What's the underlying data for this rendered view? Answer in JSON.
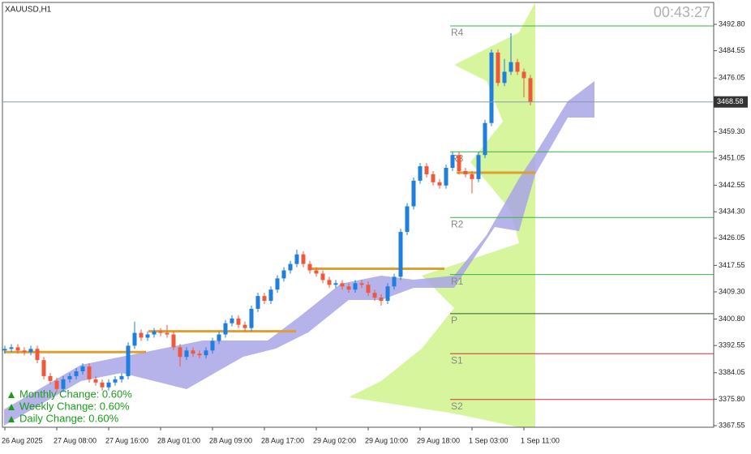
{
  "chart_data": {
    "type": "candlestick",
    "title": "XAUUSD,H1",
    "timer": "00:43:27",
    "categories": [
      "26 Aug 2025",
      null,
      null,
      null,
      null,
      null,
      null,
      null,
      "27 Aug 08:00",
      null,
      null,
      null,
      null,
      null,
      null,
      null,
      "27 Aug 16:00",
      null,
      null,
      null,
      null,
      null,
      null,
      null,
      "28 Aug 01:00",
      null,
      null,
      null,
      null,
      null,
      null,
      null,
      "28 Aug 09:00",
      null,
      null,
      null,
      null,
      null,
      null,
      null,
      "28 Aug 17:00",
      null,
      null,
      null,
      null,
      null,
      null,
      null,
      "29 Aug 02:00",
      null,
      null,
      null,
      null,
      null,
      null,
      null,
      "29 Aug 10:00",
      null,
      null,
      null,
      null,
      null,
      null,
      null,
      "29 Aug 18:00",
      null,
      null,
      null,
      null,
      null,
      null,
      null,
      "1 Sep 03:00",
      null,
      null,
      null,
      null,
      null,
      null,
      null,
      "1 Sep 11:00",
      null
    ],
    "open": [
      3391,
      3391.5,
      3392,
      3391,
      3390.5,
      3391.5,
      3388,
      3383,
      3381.5,
      3379,
      3382,
      3383,
      3384.5,
      3386,
      3382,
      3381,
      3379.5,
      3381,
      3382,
      3383,
      3392.5,
      3396.5,
      3395,
      3396,
      3397,
      3396.5,
      3396,
      3392,
      3389,
      3391,
      3390,
      3389.5,
      3391,
      3394,
      3396,
      3399.5,
      3401,
      3399,
      3398,
      3404,
      3408,
      3406.5,
      3410,
      3413.5,
      3416,
      3418,
      3421,
      3418,
      3416,
      3415,
      3413,
      3411.5,
      3412,
      3411,
      3410,
      3412,
      3411.5,
      3409,
      3407.5,
      3406.5,
      3411,
      3414,
      3428,
      3436,
      3444,
      3448.5,
      3446,
      3443.5,
      3442.5,
      3448,
      3452,
      3447,
      3446,
      3444.5,
      3452,
      3462,
      3484,
      3474.5,
      3478,
      3481,
      3478,
      3476
    ],
    "high": [
      3392.5,
      3393,
      3393,
      3392,
      3392.5,
      3392.5,
      3389,
      3384,
      3382.5,
      3383,
      3384,
      3385.5,
      3387,
      3387,
      3383,
      3382,
      3382,
      3383,
      3384,
      3393.5,
      3400,
      3397.5,
      3397,
      3398,
      3398,
      3399,
      3397,
      3393,
      3392,
      3392,
      3391,
      3392,
      3395,
      3397,
      3400.5,
      3402,
      3402,
      3400,
      3405,
      3409,
      3409,
      3411,
      3414.5,
      3417,
      3419,
      3422.5,
      3422,
      3419,
      3417,
      3416,
      3414,
      3413,
      3413,
      3412,
      3413,
      3413,
      3412.5,
      3410,
      3408.5,
      3412,
      3415,
      3429,
      3437,
      3445,
      3449.5,
      3449.5,
      3447,
      3444.5,
      3449,
      3453,
      3453,
      3448,
      3447,
      3453,
      3463,
      3485,
      3485,
      3482,
      3490,
      3482,
      3479,
      3477
    ],
    "low": [
      3390,
      3390.5,
      3390,
      3389.5,
      3389.5,
      3387,
      3382,
      3380.5,
      3378,
      3378,
      3381,
      3382,
      3383.5,
      3381,
      3380,
      3378.5,
      3378.5,
      3380,
      3381,
      3382,
      3391.5,
      3394,
      3394,
      3395,
      3395.5,
      3395,
      3391,
      3386,
      3388,
      3389,
      3388.5,
      3388.5,
      3390,
      3393,
      3395,
      3398.5,
      3398,
      3397,
      3397,
      3403,
      3405.5,
      3405.5,
      3409,
      3412.5,
      3415,
      3417,
      3417,
      3415,
      3414,
      3412,
      3410.5,
      3410.5,
      3410,
      3409,
      3409,
      3410.5,
      3408,
      3406.5,
      3405,
      3405.5,
      3410,
      3413,
      3427,
      3435,
      3443,
      3445,
      3442.5,
      3441.5,
      3441.5,
      3447,
      3446,
      3445,
      3440,
      3443.5,
      3451,
      3461,
      3473.5,
      3473.5,
      3477,
      3477,
      3470,
      3467.5
    ],
    "close": [
      3391.5,
      3392,
      3391,
      3390.5,
      3391.5,
      3388,
      3383,
      3381.5,
      3379,
      3382,
      3383,
      3384.5,
      3386,
      3382,
      3381,
      3379.5,
      3381,
      3382,
      3383,
      3392.5,
      3396.5,
      3395,
      3396,
      3397,
      3396.5,
      3396,
      3392,
      3389,
      3391,
      3390,
      3389.5,
      3391,
      3394,
      3396,
      3399.5,
      3401,
      3399,
      3398,
      3404,
      3408,
      3406.5,
      3410,
      3413.5,
      3416,
      3418,
      3421,
      3418,
      3416,
      3415,
      3413,
      3411.5,
      3412,
      3411,
      3410,
      3412,
      3411.5,
      3409,
      3407.5,
      3406.5,
      3411,
      3414,
      3428,
      3436,
      3444,
      3448.5,
      3446,
      3443.5,
      3442.5,
      3448,
      3452,
      3447,
      3446,
      3444.5,
      3452,
      3462,
      3484,
      3474.5,
      3478,
      3481,
      3478,
      3476,
      3468.58
    ],
    "up_color": "#1e7fe0",
    "down_color": "#f0583c",
    "ylim": [
      3367.04,
      3499.63
    ],
    "yticks": [
      {
        "value": 3492.8,
        "label": "3492.80"
      },
      {
        "value": 3484.55,
        "label": "3484.55"
      },
      {
        "value": 3476.05,
        "label": "3476.05"
      },
      {
        "value": 3459.3,
        "label": "3459.30"
      },
      {
        "value": 3451.05,
        "label": "3451.05"
      },
      {
        "value": 3442.55,
        "label": "3442.55"
      },
      {
        "value": 3434.3,
        "label": "3434.30"
      },
      {
        "value": 3426.05,
        "label": "3426.05"
      },
      {
        "value": 3417.55,
        "label": "3417.55"
      },
      {
        "value": 3409.3,
        "label": "3409.30"
      },
      {
        "value": 3400.8,
        "label": "3400.80"
      },
      {
        "value": 3392.55,
        "label": "3392.55"
      },
      {
        "value": 3384.05,
        "label": "3384.05"
      },
      {
        "value": 3375.8,
        "label": "3375.80"
      },
      {
        "value": 3367.55,
        "label": "3367.55"
      }
    ],
    "pivots": [
      {
        "name": "R4",
        "value": 3492.3,
        "color": "#3cb043"
      },
      {
        "name": "R3",
        "value": 3453,
        "color": "#3cb043"
      },
      {
        "name": "R2",
        "value": 3432.5,
        "color": "#3cb043"
      },
      {
        "name": "R1",
        "value": 3414.7,
        "color": "#3cb043"
      },
      {
        "name": "P",
        "value": 3402.5,
        "color": "#2e5a2e"
      },
      {
        "name": "S1",
        "value": 3390,
        "color": "#d03030"
      },
      {
        "name": "S2",
        "value": 3375.7,
        "color": "#d03030"
      }
    ],
    "poc_levels": [
      3390.5,
      3397,
      3416.5,
      3446.5
    ],
    "poc_color": "#dba030",
    "changes": [
      "Monthly Change: 0.60%",
      "Weekly Change: 0.60%",
      "Daily Change: 0.60%"
    ]
  }
}
